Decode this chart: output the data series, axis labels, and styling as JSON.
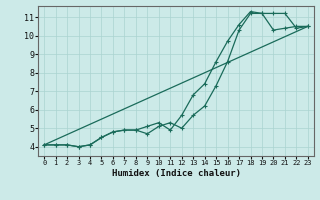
{
  "xlabel": "Humidex (Indice chaleur)",
  "xlim": [
    -0.5,
    23.5
  ],
  "ylim": [
    3.5,
    11.6
  ],
  "xticks": [
    0,
    1,
    2,
    3,
    4,
    5,
    6,
    7,
    8,
    9,
    10,
    11,
    12,
    13,
    14,
    15,
    16,
    17,
    18,
    19,
    20,
    21,
    22,
    23
  ],
  "yticks": [
    4,
    5,
    6,
    7,
    8,
    9,
    10,
    11
  ],
  "bg_color": "#cceae8",
  "grid_color": "#aad4d0",
  "line_color": "#1a6b5a",
  "line1_x": [
    0,
    1,
    2,
    3,
    4,
    5,
    6,
    7,
    8,
    9,
    10,
    11,
    12,
    13,
    14,
    15,
    16,
    17,
    18,
    19,
    20,
    21,
    22,
    23
  ],
  "line1_y": [
    4.1,
    4.1,
    4.1,
    4.0,
    4.1,
    4.5,
    4.8,
    4.9,
    4.9,
    4.7,
    5.1,
    5.3,
    5.0,
    5.7,
    6.2,
    7.3,
    8.6,
    10.3,
    11.2,
    11.2,
    11.2,
    11.2,
    10.4,
    10.5
  ],
  "line2_x": [
    0,
    1,
    2,
    3,
    4,
    5,
    6,
    7,
    8,
    9,
    10,
    11,
    12,
    13,
    14,
    15,
    16,
    17,
    18,
    19,
    20,
    21,
    22,
    23
  ],
  "line2_y": [
    4.1,
    4.1,
    4.1,
    4.0,
    4.1,
    4.5,
    4.8,
    4.9,
    4.9,
    5.1,
    5.3,
    4.9,
    5.7,
    6.8,
    7.4,
    8.6,
    9.7,
    10.6,
    11.3,
    11.2,
    10.3,
    10.4,
    10.5,
    10.5
  ],
  "line3_x": [
    0,
    23
  ],
  "line3_y": [
    4.1,
    10.5
  ]
}
